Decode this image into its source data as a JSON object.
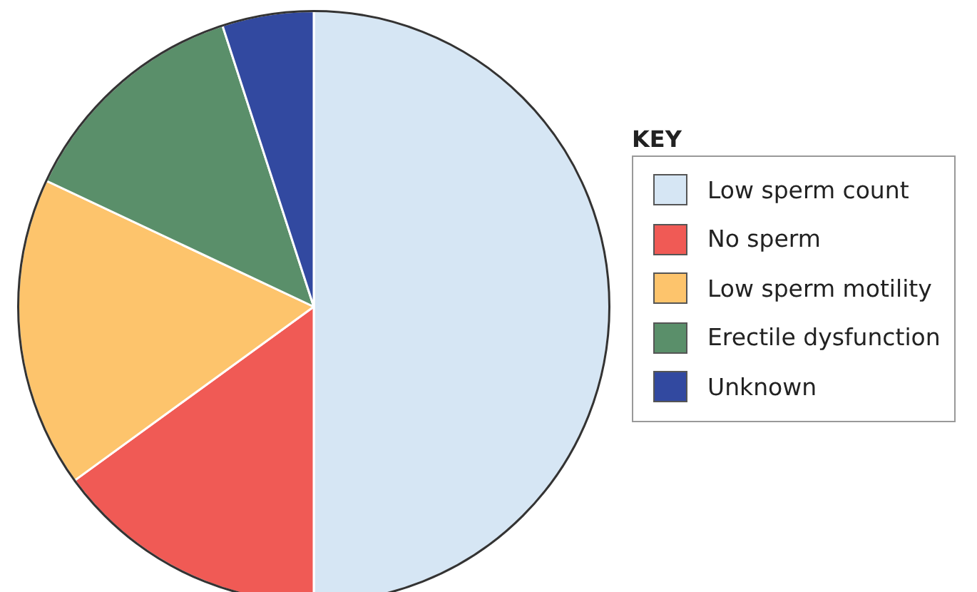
{
  "chart_data": {
    "type": "pie",
    "legend_title": "KEY",
    "legend": "right",
    "categories": [
      "Low sperm count",
      "No sperm",
      "Low sperm motility",
      "Erectile dysfunction",
      "Unknown"
    ],
    "values": [
      50,
      15,
      17,
      13,
      5
    ],
    "colors": [
      "#d6e6f4",
      "#f05a55",
      "#fdc46c",
      "#5a8f6a",
      "#3249a0"
    ]
  }
}
